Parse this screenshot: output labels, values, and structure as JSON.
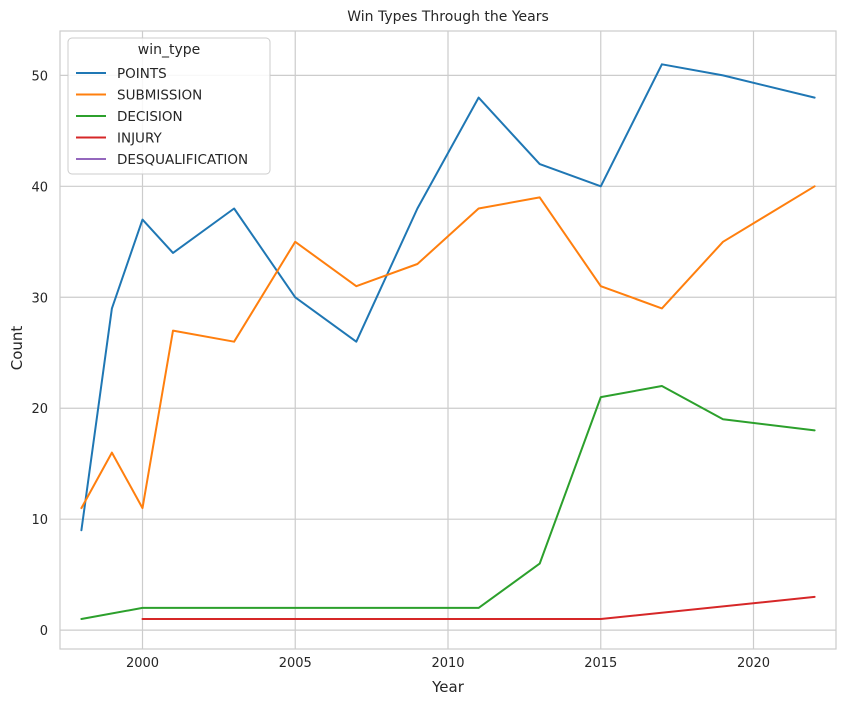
{
  "chart_data": {
    "type": "line",
    "title": "Win Types Through the Years",
    "xlabel": "Year",
    "ylabel": "Count",
    "xlim": [
      1997.3,
      2022.7
    ],
    "ylim": [
      -1.7,
      54
    ],
    "x_ticks": [
      2000,
      2005,
      2010,
      2015,
      2020
    ],
    "y_ticks": [
      0,
      10,
      20,
      30,
      40,
      50
    ],
    "grid": true,
    "legend": {
      "title": "win_type",
      "placement": "top-left"
    },
    "series": [
      {
        "name": "POINTS",
        "color": "#1f77b4",
        "x": [
          1998,
          1999,
          2000,
          2001,
          2003,
          2005,
          2007,
          2009,
          2011,
          2013,
          2015,
          2017,
          2019,
          2022
        ],
        "y": [
          9,
          29,
          37,
          34,
          38,
          30,
          26,
          38,
          48,
          42,
          40,
          51,
          50,
          48
        ]
      },
      {
        "name": "SUBMISSION",
        "color": "#ff7f0e",
        "x": [
          1998,
          1999,
          2000,
          2001,
          2003,
          2005,
          2007,
          2009,
          2011,
          2013,
          2015,
          2017,
          2019,
          2022
        ],
        "y": [
          11,
          16,
          11,
          27,
          26,
          35,
          31,
          33,
          38,
          39,
          31,
          29,
          35,
          40
        ]
      },
      {
        "name": "DECISION",
        "color": "#2ca02c",
        "x": [
          1998,
          2000,
          2001,
          2003,
          2005,
          2007,
          2009,
          2011,
          2013,
          2015,
          2017,
          2019,
          2022
        ],
        "y": [
          1,
          2,
          2,
          2,
          2,
          2,
          2,
          2,
          6,
          21,
          22,
          19,
          18
        ]
      },
      {
        "name": "INJURY",
        "color": "#d62728",
        "x": [
          2000,
          2001,
          2003,
          2005,
          2007,
          2009,
          2011,
          2013,
          2015,
          2022
        ],
        "y": [
          1,
          1,
          1,
          1,
          1,
          1,
          1,
          1,
          1,
          3
        ]
      },
      {
        "name": "DESQUALIFICATION",
        "color": "#9467bd",
        "x": [],
        "y": []
      }
    ]
  }
}
